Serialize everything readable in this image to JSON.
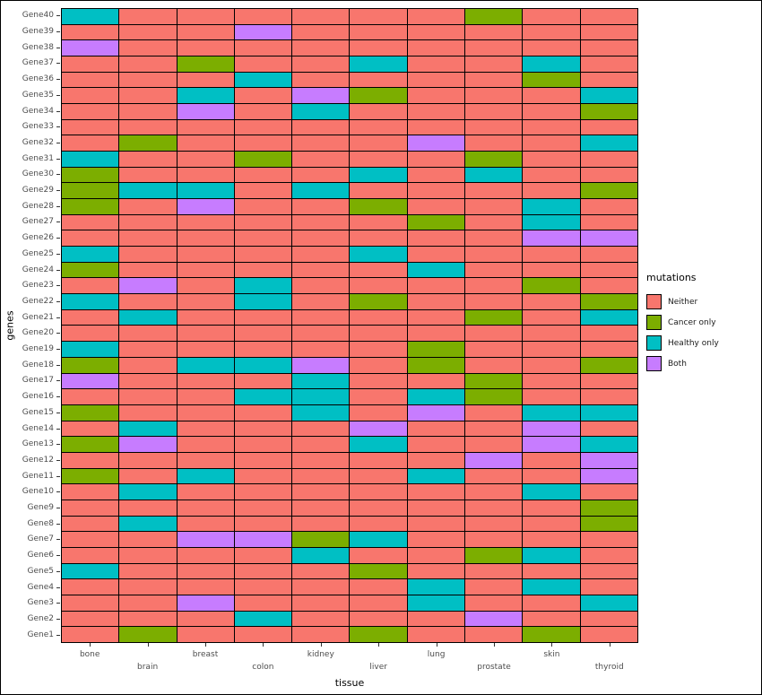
{
  "figure": {
    "x_title": "tissue",
    "y_title": "genes"
  },
  "legend": {
    "title": "mutations",
    "items": [
      {
        "label": "Neither",
        "color": "#F8766D"
      },
      {
        "label": "Cancer only",
        "color": "#7CAE00"
      },
      {
        "label": "Healthy only",
        "color": "#00BFC4"
      },
      {
        "label": "Both",
        "color": "#C77CFF"
      }
    ]
  },
  "chart_data": {
    "type": "heatmap",
    "title": "",
    "xlabel": "tissue",
    "ylabel": "genes",
    "legend_title": "mutations",
    "legend_position": "right",
    "grid": "black cell borders on every tile",
    "categories_x": [
      "bone",
      "brain",
      "breast",
      "colon",
      "kidney",
      "liver",
      "lung",
      "prostate",
      "skin",
      "thyroid"
    ],
    "categories_y": [
      "Gene40",
      "Gene39",
      "Gene38",
      "Gene37",
      "Gene36",
      "Gene35",
      "Gene34",
      "Gene33",
      "Gene32",
      "Gene31",
      "Gene30",
      "Gene29",
      "Gene28",
      "Gene27",
      "Gene26",
      "Gene25",
      "Gene24",
      "Gene23",
      "Gene22",
      "Gene21",
      "Gene20",
      "Gene19",
      "Gene18",
      "Gene17",
      "Gene16",
      "Gene15",
      "Gene14",
      "Gene13",
      "Gene12",
      "Gene11",
      "Gene10",
      "Gene9",
      "Gene8",
      "Gene7",
      "Gene6",
      "Gene5",
      "Gene4",
      "Gene3",
      "Gene2",
      "Gene1"
    ],
    "value_levels": {
      "N": "Neither",
      "C": "Cancer only",
      "H": "Healthy only",
      "B": "Both"
    },
    "colors": {
      "Neither": "#F8766D",
      "Cancer only": "#7CAE00",
      "Healthy only": "#00BFC4",
      "Both": "#C77CFF"
    },
    "rows_top_to_bottom": [
      [
        "H",
        "N",
        "N",
        "N",
        "N",
        "N",
        "N",
        "C",
        "N",
        "N"
      ],
      [
        "N",
        "N",
        "N",
        "B",
        "N",
        "N",
        "N",
        "N",
        "N",
        "N"
      ],
      [
        "B",
        "N",
        "N",
        "N",
        "N",
        "N",
        "N",
        "N",
        "N",
        "N"
      ],
      [
        "N",
        "N",
        "C",
        "N",
        "N",
        "H",
        "N",
        "N",
        "H",
        "N"
      ],
      [
        "N",
        "N",
        "N",
        "H",
        "N",
        "N",
        "N",
        "N",
        "C",
        "N"
      ],
      [
        "N",
        "N",
        "H",
        "N",
        "B",
        "C",
        "N",
        "N",
        "N",
        "H"
      ],
      [
        "N",
        "N",
        "B",
        "N",
        "H",
        "N",
        "N",
        "N",
        "N",
        "C"
      ],
      [
        "N",
        "N",
        "N",
        "N",
        "N",
        "N",
        "N",
        "N",
        "N",
        "N"
      ],
      [
        "N",
        "C",
        "N",
        "N",
        "N",
        "N",
        "B",
        "N",
        "N",
        "H"
      ],
      [
        "H",
        "N",
        "N",
        "C",
        "N",
        "N",
        "N",
        "C",
        "N",
        "N"
      ],
      [
        "C",
        "N",
        "N",
        "N",
        "N",
        "H",
        "N",
        "H",
        "N",
        "N"
      ],
      [
        "C",
        "H",
        "H",
        "N",
        "H",
        "N",
        "N",
        "N",
        "N",
        "C"
      ],
      [
        "C",
        "N",
        "B",
        "N",
        "N",
        "C",
        "N",
        "N",
        "H",
        "N"
      ],
      [
        "N",
        "N",
        "N",
        "N",
        "N",
        "N",
        "C",
        "N",
        "H",
        "N"
      ],
      [
        "N",
        "N",
        "N",
        "N",
        "N",
        "N",
        "N",
        "N",
        "B",
        "B"
      ],
      [
        "H",
        "N",
        "N",
        "N",
        "N",
        "H",
        "N",
        "N",
        "N",
        "N"
      ],
      [
        "C",
        "N",
        "N",
        "N",
        "N",
        "N",
        "H",
        "N",
        "N",
        "N"
      ],
      [
        "N",
        "B",
        "N",
        "H",
        "N",
        "N",
        "N",
        "N",
        "C",
        "N"
      ],
      [
        "H",
        "N",
        "N",
        "H",
        "N",
        "C",
        "N",
        "N",
        "N",
        "C"
      ],
      [
        "N",
        "H",
        "N",
        "N",
        "N",
        "N",
        "N",
        "C",
        "N",
        "H"
      ],
      [
        "N",
        "N",
        "N",
        "N",
        "N",
        "N",
        "N",
        "N",
        "N",
        "N"
      ],
      [
        "H",
        "N",
        "N",
        "N",
        "N",
        "N",
        "C",
        "N",
        "N",
        "N"
      ],
      [
        "C",
        "N",
        "H",
        "H",
        "B",
        "N",
        "C",
        "N",
        "N",
        "C"
      ],
      [
        "B",
        "N",
        "N",
        "N",
        "H",
        "N",
        "N",
        "C",
        "N",
        "N"
      ],
      [
        "N",
        "N",
        "N",
        "H",
        "H",
        "N",
        "H",
        "C",
        "N",
        "N"
      ],
      [
        "C",
        "N",
        "N",
        "N",
        "H",
        "N",
        "B",
        "N",
        "H",
        "H"
      ],
      [
        "N",
        "H",
        "N",
        "N",
        "N",
        "B",
        "N",
        "N",
        "B",
        "N"
      ],
      [
        "C",
        "B",
        "N",
        "N",
        "N",
        "H",
        "N",
        "N",
        "B",
        "H"
      ],
      [
        "N",
        "N",
        "N",
        "N",
        "N",
        "N",
        "N",
        "B",
        "N",
        "B"
      ],
      [
        "C",
        "N",
        "H",
        "N",
        "N",
        "N",
        "H",
        "N",
        "N",
        "B"
      ],
      [
        "N",
        "H",
        "N",
        "N",
        "N",
        "N",
        "N",
        "N",
        "H",
        "N"
      ],
      [
        "N",
        "N",
        "N",
        "N",
        "N",
        "N",
        "N",
        "N",
        "N",
        "C"
      ],
      [
        "N",
        "H",
        "N",
        "N",
        "N",
        "N",
        "N",
        "N",
        "N",
        "C"
      ],
      [
        "N",
        "N",
        "B",
        "B",
        "C",
        "H",
        "N",
        "N",
        "N",
        "N"
      ],
      [
        "N",
        "N",
        "N",
        "N",
        "H",
        "N",
        "N",
        "C",
        "H",
        "N"
      ],
      [
        "H",
        "N",
        "N",
        "N",
        "N",
        "C",
        "N",
        "N",
        "N",
        "N"
      ],
      [
        "N",
        "N",
        "N",
        "N",
        "N",
        "N",
        "H",
        "N",
        "H",
        "N"
      ],
      [
        "N",
        "N",
        "B",
        "N",
        "N",
        "N",
        "H",
        "N",
        "N",
        "H"
      ],
      [
        "N",
        "N",
        "N",
        "H",
        "N",
        "N",
        "N",
        "B",
        "N",
        "N"
      ],
      [
        "N",
        "C",
        "N",
        "N",
        "N",
        "C",
        "N",
        "N",
        "C",
        "N"
      ]
    ]
  }
}
